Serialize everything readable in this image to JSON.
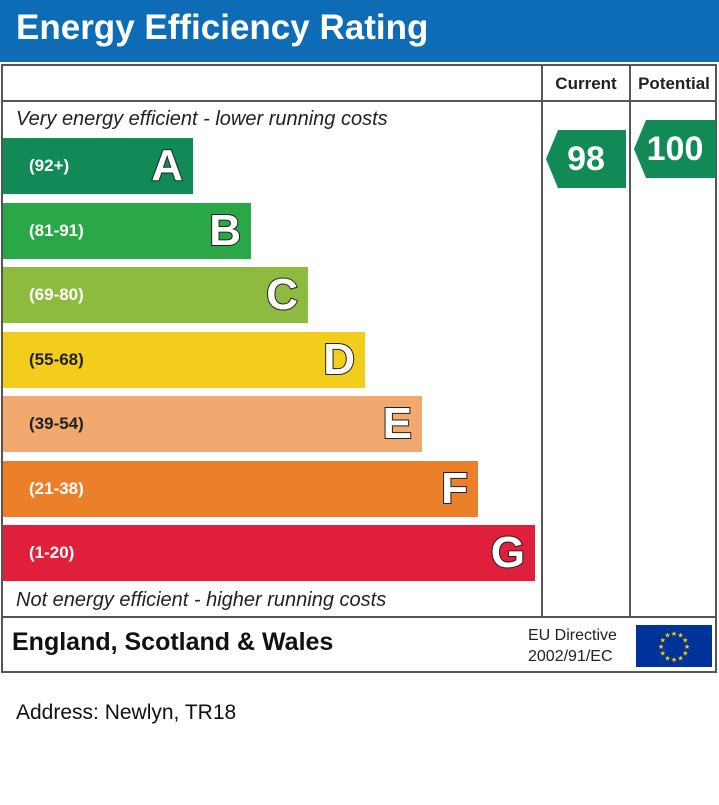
{
  "title": "Energy Efficiency Rating",
  "columns": {
    "current": "Current",
    "potential": "Potential"
  },
  "top_caption": "Very energy efficient - lower running costs",
  "bottom_caption": "Not energy efficient - higher running costs",
  "footer": {
    "region": "England, Scotland & Wales",
    "directive_line1": "EU Directive",
    "directive_line2": "2002/91/EC"
  },
  "address": "Address: Newlyn, TR18",
  "chart_data": {
    "type": "bar",
    "categories": [
      "A",
      "B",
      "C",
      "D",
      "E",
      "F",
      "G"
    ],
    "ranges": [
      "(92+)",
      "(81-91)",
      "(69-80)",
      "(55-68)",
      "(39-54)",
      "(21-38)",
      "(1-20)"
    ],
    "colors": [
      "#128a58",
      "#2aa847",
      "#8dbb3f",
      "#f2cd1b",
      "#f1a96f",
      "#ec7f2a",
      "#e01f3c"
    ],
    "current": {
      "value": 98,
      "band": "A"
    },
    "potential": {
      "value": 100,
      "band": "A"
    },
    "arrow_color": "#128a58"
  }
}
